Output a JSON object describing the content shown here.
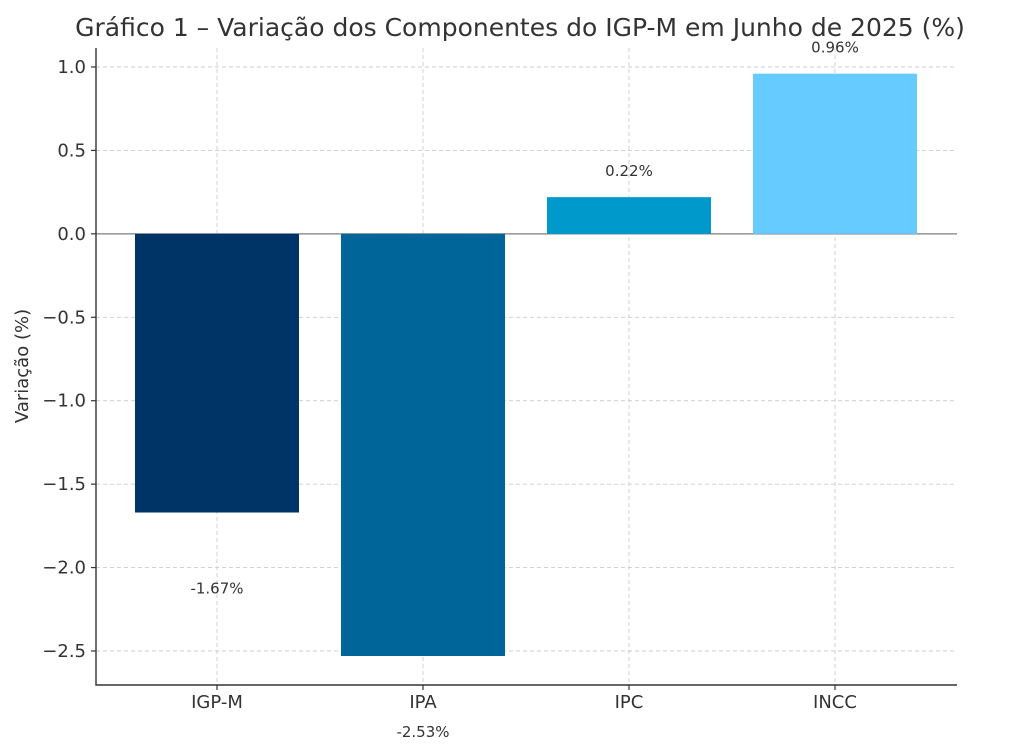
{
  "chart_data": {
    "type": "bar",
    "title": "Gráfico 1 – Variação dos Componentes do IGP-M em Junho de 2025 (%)",
    "xlabel": "",
    "ylabel": "Variação (%)",
    "categories": [
      "IGP-M",
      "IPA",
      "IPC",
      "INCC"
    ],
    "values": [
      -1.67,
      -2.53,
      0.22,
      0.96
    ],
    "value_labels": [
      "-1.67%",
      "-2.53%",
      "0.22%",
      "0.96%"
    ],
    "bar_colors": [
      "#003366",
      "#006699",
      "#0099CC",
      "#66CCFF"
    ],
    "ylim": [
      -2.7,
      1.1
    ],
    "yticks": [
      1.0,
      0.5,
      0.0,
      -0.5,
      -1.0,
      -1.5,
      -2.0,
      -2.5
    ],
    "ytick_labels": [
      "1.0",
      "0.5",
      "0.0",
      "−0.5",
      "−1.0",
      "−1.5",
      "−2.0",
      "−2.5"
    ],
    "grid": true,
    "zero_line": true,
    "legend": false
  }
}
